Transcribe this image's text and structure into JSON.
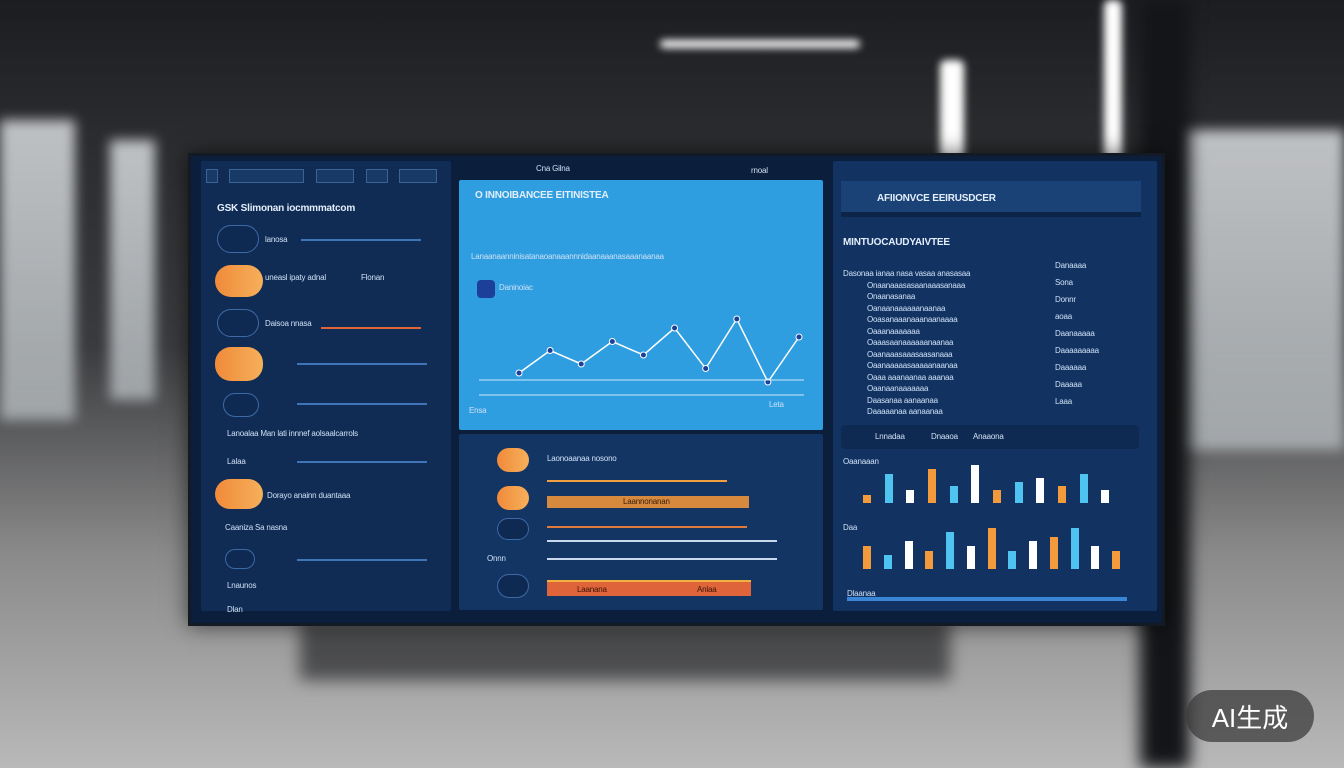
{
  "left_panel": {
    "title": "GSK Slimonan iocmmmatcom",
    "rows": [
      {
        "label": "lanosa",
        "type": "dark"
      },
      {
        "label": "uneasl ipaty adnal",
        "value": "Flonan",
        "type": "orange"
      },
      {
        "label": "Daisoa nnasa",
        "type": "dark"
      },
      {
        "label": "",
        "type": "orange"
      },
      {
        "label": "",
        "type": "dark"
      }
    ],
    "mid_text": "Lanoalaa Man lati innnef aolsaalcarrols",
    "row_labels": [
      "Lalaa",
      "Dorayo anainn duantaaa",
      "Caaniza Sa nasna",
      "Lnaunos",
      "Dlan"
    ]
  },
  "center_panel": {
    "title": "O INNOIBANCEE EITINISTEA",
    "subtitle": "Lanaanaanninisatanaoanaaannnidaanaaanasaaanaanaa",
    "legend_label": "Daninoiac",
    "axis_label": "Ensa",
    "axis_right": "Leta",
    "line_values": [
      0.3,
      0.55,
      0.4,
      0.65,
      0.5,
      0.8,
      0.35,
      0.9,
      0.2,
      0.7
    ],
    "bottom_labels": [
      "Laonoaanaa nosono",
      "Laannonanan",
      "Onnn",
      "Laanana",
      "Anlaa"
    ]
  },
  "header": {
    "center_tabs": "Cna Gilna",
    "right_label": "rnoal"
  },
  "right_panel": {
    "title": "AFIIONVCE EEIRUSDCER",
    "section_title": "MINTUOCAUDYAIVTEE",
    "lines": [
      "Dasonaa ianaa nasa vasaa anasasaa",
      "Onaanaaasasaanaaasanaaa",
      "Onaanasanaa",
      "Oanaanaaaaaanaanaa",
      "Ooasanaaanaaanaanaaaa",
      "Oaaanaaaaaaa",
      "Oaaasaanaaaaaanaanaa",
      "Oaanaaasaaasaasanaaa",
      "Oaanaaaaasaaaaanaanaa",
      "Oaaa aaanaanaa aaanaa",
      "Oaanaanaaaaaaa",
      "Daasanaa aanaanaa",
      "Daaaaanaa aanaanaa"
    ],
    "side": [
      "Danaaaa",
      "Sona",
      "Donnr",
      "aoaa",
      "Daanaaaaa",
      "Daaaaaaaaa",
      "Daaaaaa",
      "Daaaaa",
      "Laaa"
    ],
    "tabs": [
      "Lnnadaa",
      "Dnaaoa",
      "Anaaona"
    ],
    "chart1_label": "Oaanaaan",
    "chart1_bars": [
      0.2,
      0.7,
      0.3,
      0.8,
      0.4,
      0.9,
      0.3,
      0.5,
      0.6,
      0.4,
      0.7,
      0.3
    ],
    "chart2_label": "Daa",
    "chart2_bars": [
      0.5,
      0.3,
      0.6,
      0.4,
      0.8,
      0.5,
      0.9,
      0.4,
      0.6,
      0.7,
      0.9,
      0.5,
      0.4
    ],
    "bar_colors": [
      "#f29a3c",
      "#4fc4f0",
      "#ffffff"
    ],
    "footer": "Dlaanaa"
  },
  "watermark": "AI生成"
}
